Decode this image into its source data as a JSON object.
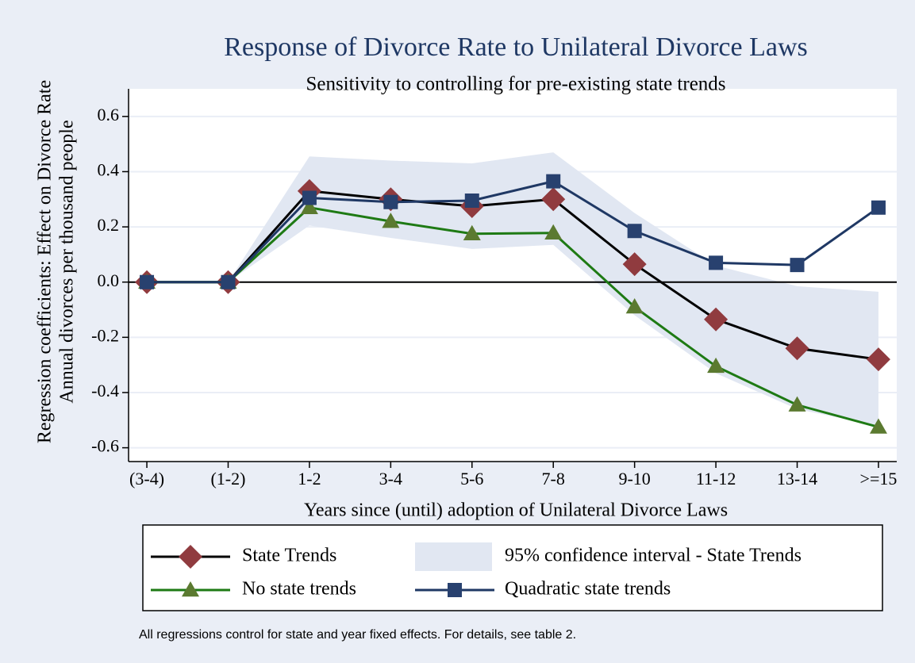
{
  "chart_data": {
    "type": "line",
    "title": "Response of Divorce Rate to Unilateral Divorce Laws",
    "subtitle": "Sensitivity to controlling for pre-existing state trends",
    "xlabel": "Years since (until) adoption of Unilateral Divorce Laws",
    "ylabel": [
      "Regression coefficients: Effect on Divorce Rate",
      "Annual divorces per thousand people"
    ],
    "note": "All regressions control for state and year fixed effects.  For details, see table 2.",
    "categories": [
      "(3-4)",
      "(1-2)",
      "1-2",
      "3-4",
      "5-6",
      "7-8",
      "9-10",
      "11-12",
      "13-14",
      ">=15"
    ],
    "series": [
      {
        "name": "State Trends",
        "color": "#000000",
        "marker": "diamond",
        "marker_color": "#903b3f",
        "values": [
          0,
          0,
          0.33,
          0.3,
          0.275,
          0.3,
          0.065,
          -0.135,
          -0.24,
          -0.28
        ]
      },
      {
        "name": "95% confidence interval - State Trends",
        "style": "band",
        "color": "#e1e7f2",
        "upper": [
          0,
          0,
          0.455,
          0.44,
          0.43,
          0.47,
          0.25,
          0.06,
          -0.015,
          -0.035
        ],
        "lower": [
          0,
          0,
          0.205,
          0.16,
          0.12,
          0.135,
          -0.12,
          -0.33,
          -0.46,
          -0.52
        ]
      },
      {
        "name": "No state trends",
        "color": "#1e7a14",
        "marker": "triangle",
        "marker_color": "#5b7a30",
        "values": [
          0,
          0,
          0.27,
          0.22,
          0.175,
          0.178,
          -0.09,
          -0.305,
          -0.445,
          -0.525
        ]
      },
      {
        "name": "Quadratic state trends",
        "color": "#1f3864",
        "marker": "square",
        "marker_color": "#28416f",
        "values": [
          0,
          0,
          0.305,
          0.29,
          0.295,
          0.365,
          0.185,
          0.07,
          0.062,
          0.27
        ]
      }
    ],
    "ylim": [
      -0.65,
      0.7
    ],
    "yticks": [
      0.6,
      0.4,
      0.2,
      {
        "value": 0,
        "label": "0.0"
      },
      -0.2,
      -0.4,
      -0.6
    ],
    "reference_line": 0,
    "grid": true
  }
}
